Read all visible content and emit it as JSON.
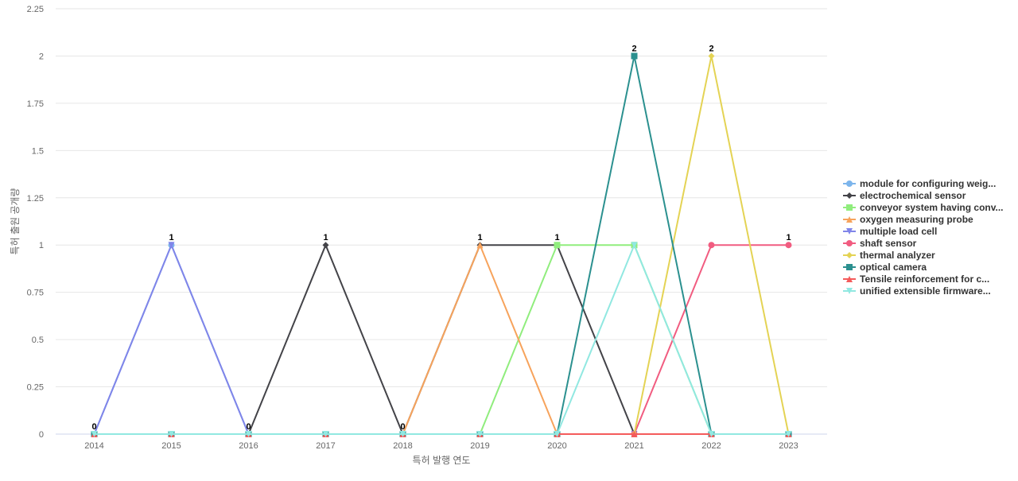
{
  "chart_data": {
    "type": "line",
    "title": "",
    "xlabel": "특허 발행 연도",
    "ylabel": "특허 출원 공개량",
    "x": [
      "2014",
      "2015",
      "2016",
      "2017",
      "2018",
      "2019",
      "2020",
      "2021",
      "2022",
      "2023"
    ],
    "ylim": [
      0,
      2.25
    ],
    "yticks": [
      "0",
      "0.25",
      "0.5",
      "0.75",
      "1",
      "1.25",
      "1.5",
      "1.75",
      "2",
      "2.25"
    ],
    "grid": true,
    "legend_position": "right",
    "series": [
      {
        "name": "module for configuring weig...",
        "color": "#7cb5ec",
        "marker": "circle",
        "values": [
          0,
          1,
          0,
          0,
          0,
          0,
          0,
          0,
          0,
          0
        ]
      },
      {
        "name": "electrochemical sensor",
        "color": "#434348",
        "marker": "diamond",
        "values": [
          0,
          0,
          0,
          1,
          0,
          1,
          1,
          0,
          0,
          0
        ]
      },
      {
        "name": "conveyor system having conv...",
        "color": "#90ed7d",
        "marker": "square",
        "values": [
          0,
          0,
          0,
          0,
          0,
          0,
          1,
          1,
          0,
          0
        ]
      },
      {
        "name": "oxygen measuring probe",
        "color": "#f7a35c",
        "marker": "triangle",
        "values": [
          0,
          0,
          0,
          0,
          0,
          1,
          0,
          0,
          0,
          0
        ]
      },
      {
        "name": "multiple load cell",
        "color": "#8085e9",
        "marker": "triangle-down",
        "values": [
          0,
          1,
          0,
          0,
          0,
          0,
          0,
          0,
          0,
          0
        ]
      },
      {
        "name": "shaft sensor",
        "color": "#f15c80",
        "marker": "circle",
        "values": [
          0,
          0,
          0,
          0,
          0,
          0,
          0,
          0,
          1,
          1
        ]
      },
      {
        "name": "thermal analyzer",
        "color": "#e4d354",
        "marker": "diamond",
        "values": [
          0,
          0,
          0,
          0,
          0,
          0,
          0,
          0,
          2,
          0
        ]
      },
      {
        "name": "optical camera",
        "color": "#2b908f",
        "marker": "square",
        "values": [
          0,
          0,
          0,
          0,
          0,
          0,
          0,
          2,
          0,
          0
        ]
      },
      {
        "name": "Tensile reinforcement for c...",
        "color": "#f45b5b",
        "marker": "triangle",
        "values": [
          0,
          0,
          0,
          0,
          0,
          0,
          0,
          0,
          0,
          0
        ]
      },
      {
        "name": "unified extensible firmware...",
        "color": "#91e8e1",
        "marker": "triangle-down",
        "values": [
          0,
          0,
          0,
          0,
          0,
          0,
          0,
          1,
          0,
          0
        ]
      }
    ],
    "data_labels": [
      "0",
      "1",
      "0",
      "1",
      "0",
      "1",
      "1",
      "2",
      "2",
      "1"
    ]
  }
}
